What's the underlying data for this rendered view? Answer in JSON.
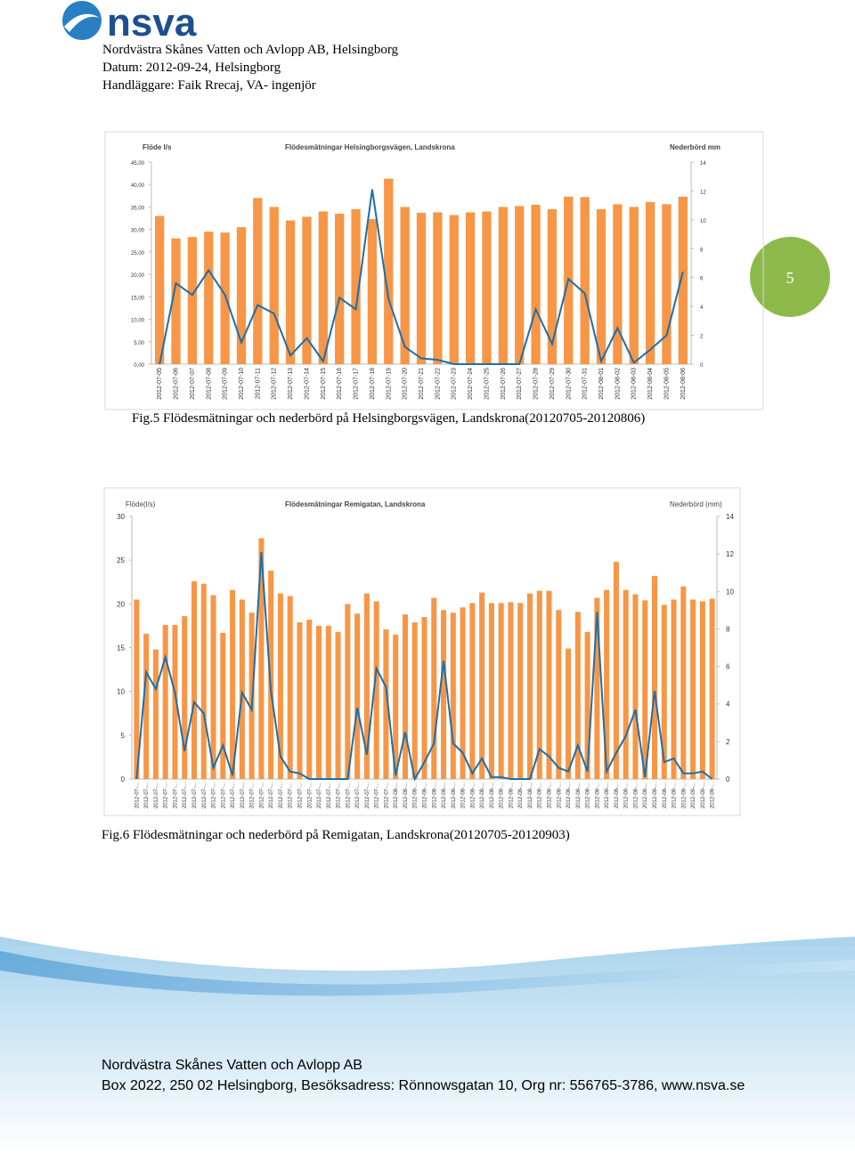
{
  "header": {
    "logo": "nsva",
    "lines": [
      "Nordvästra Skånes Vatten och Avlopp AB, Helsingborg",
      "Datum: 2012-09-24, Helsingborg",
      "Handläggare: Faik Rrecaj, VA- ingenjör"
    ]
  },
  "page_number": 5,
  "chart_data": [
    {
      "type": "bar-line",
      "title": "Flödesmätningar Helsingborgsvägen, Landskrona",
      "ylabel": "Flöde l/s",
      "y2label": "Nederbörd mm",
      "caption": "Fig.5 Flödesmätningar och nederbörd på Helsingborgsvägen, Landskrona(20120705-20120806)",
      "categories": [
        "2012-07-05",
        "2012-07-06",
        "2012-07-07",
        "2012-07-08",
        "2012-07-09",
        "2012-07-10",
        "2012-07-11",
        "2012-07-12",
        "2012-07-13",
        "2012-07-14",
        "2012-07-15",
        "2012-07-16",
        "2012-07-17",
        "2012-07-18",
        "2012-07-19",
        "2012-07-20",
        "2012-07-21",
        "2012-07-22",
        "2012-07-23",
        "2012-07-24",
        "2012-07-25",
        "2012-07-26",
        "2012-07-27",
        "2012-07-28",
        "2012-07-29",
        "2012-07-30",
        "2012-07-31",
        "2012-08-01",
        "2012-08-02",
        "2012-08-03",
        "2012-08-04",
        "2012-08-05",
        "2012-08-06"
      ],
      "series": [
        {
          "color": "#f79646",
          "values": [
            33,
            28,
            28.3,
            29.5,
            29.3,
            30.5,
            37,
            35,
            32,
            32.8,
            34,
            33.5,
            34.5,
            32.3,
            41.3,
            35,
            33.7,
            33.8,
            33.2,
            33.8,
            34,
            35,
            35.2,
            35.5,
            34.5,
            37.3,
            37.2,
            34.5,
            35.6,
            35,
            36.1,
            35.6,
            37.3
          ]
        },
        {
          "color": "#1f6ea6",
          "axis": "y2",
          "values": [
            0,
            5.6,
            4.8,
            6.5,
            4.8,
            1.5,
            4.1,
            3.5,
            0.6,
            1.8,
            0.2,
            4.6,
            3.8,
            12.1,
            4.5,
            1.2,
            0.4,
            0.3,
            0,
            0,
            0,
            0,
            0,
            3.8,
            1.4,
            5.9,
            4.9,
            0.2,
            2.5,
            0.1,
            1,
            2,
            6.4
          ]
        }
      ],
      "ylim": [
        0,
        45
      ],
      "yticks": [
        {
          "value": 0,
          "label": "0,00"
        },
        {
          "value": 5,
          "label": "5,00"
        },
        {
          "value": 10,
          "label": "10,00"
        },
        {
          "value": 15,
          "label": "15,00"
        },
        {
          "value": 20,
          "label": "20,00"
        },
        {
          "value": 25,
          "label": "25,00"
        },
        {
          "value": 30,
          "label": "30,00"
        },
        {
          "value": 35,
          "label": "35,00"
        },
        {
          "value": 40,
          "label": "40,00"
        },
        {
          "value": 45,
          "label": "45,00"
        }
      ],
      "y2lim": [
        0,
        14
      ],
      "y2ticks": [
        0,
        2,
        4,
        6,
        8,
        10,
        12,
        14
      ]
    },
    {
      "type": "bar-line",
      "title": "Flödesmätningar Remigatan, Landskrona",
      "ylabel": "Flöde(l/s)",
      "y2label": "Nederbörd (mm)",
      "caption": "Fig.6 Flödesmätningar och nederbörd på Remigatan, Landskrona(20120705-20120903)",
      "categories": [
        "2012-07-...",
        "2012-07-...",
        "2012-07-...",
        "2012-07-...",
        "2012-07-...",
        "2012-07-...",
        "2012-07-...",
        "2012-07-...",
        "2012-07-...",
        "2012-07-...",
        "2012-07-...",
        "2012-07-...",
        "2012-07-...",
        "2012-07-...",
        "2012-07-...",
        "2012-07-...",
        "2012-07-...",
        "2012-07-...",
        "2012-07-...",
        "2012-07-...",
        "2012-07-...",
        "2012-07-...",
        "2012-07-...",
        "2012-07-...",
        "2012-07-...",
        "2012-07-...",
        "2012-07-...",
        "2012-08-...",
        "2012-08-...",
        "2012-08-...",
        "2012-08-...",
        "2012-08-...",
        "2012-08-...",
        "2012-08-...",
        "2012-08-...",
        "2012-08-...",
        "2012-08-...",
        "2012-08-...",
        "2012-08-...",
        "2012-08-...",
        "2012-08-...",
        "2012-08-...",
        "2012-08-...",
        "2012-08-...",
        "2012-08-...",
        "2012-08-...",
        "2012-08-...",
        "2012-08-...",
        "2012-08-...",
        "2012-08-...",
        "2012-08-...",
        "2012-08-...",
        "2012-08-...",
        "2012-08-...",
        "2012-08-...",
        "2012-08-...",
        "2012-08-...",
        "2012-08-...",
        "2012-09-...",
        "2012-09-...",
        "2012-09-..."
      ],
      "series": [
        {
          "color": "#f79646",
          "values": [
            20.5,
            16.6,
            14.8,
            17.6,
            17.6,
            18.6,
            22.6,
            22.3,
            21,
            16.7,
            21.6,
            20.5,
            19,
            27.5,
            23.8,
            21.2,
            20.9,
            17.9,
            18.2,
            17.5,
            17.5,
            16.8,
            20,
            18.9,
            21.2,
            20.3,
            17.1,
            16.5,
            18.8,
            17.9,
            18.5,
            20.7,
            19.3,
            19,
            19.6,
            20.1,
            21.3,
            20.1,
            20.1,
            20.2,
            20.1,
            21.2,
            21.5,
            21.5,
            19.3,
            14.9,
            19.1,
            16.8,
            20.7,
            21.6,
            24.8,
            21.6,
            21.1,
            20.4,
            23.2,
            19.9,
            20.5,
            22,
            20.5,
            20.3,
            20.6
          ]
        },
        {
          "color": "#1f6ea6",
          "axis": "y2",
          "values": [
            0,
            5.7,
            4.8,
            6.5,
            4.6,
            1.5,
            4.1,
            3.5,
            0.6,
            1.8,
            0.2,
            4.6,
            3.7,
            12.1,
            4.7,
            1.2,
            0.4,
            0.3,
            0,
            0,
            0,
            0,
            0,
            3.8,
            1.3,
            5.9,
            4.9,
            0.2,
            2.5,
            0,
            0.9,
            1.9,
            6.3,
            1.9,
            1.4,
            0.3,
            1.1,
            0.1,
            0.1,
            0,
            0,
            0,
            1.6,
            1.2,
            0.6,
            0.4,
            1.8,
            0.4,
            8.9,
            0.4,
            1.4,
            2.3,
            3.7,
            0.1,
            4.7,
            0.9,
            1.1,
            0.3,
            0.3,
            0.4,
            0
          ]
        }
      ],
      "ylim": [
        0,
        30
      ],
      "yticks": [
        0,
        5,
        10,
        15,
        20,
        25,
        30
      ],
      "y2lim": [
        0,
        14
      ],
      "y2ticks": [
        0,
        2,
        4,
        6,
        8,
        10,
        12,
        14
      ]
    }
  ],
  "footer": {
    "lines": [
      "Nordvästra Skånes Vatten och Avlopp AB",
      "Box 2022, 250 02 Helsingborg, Besöksadress: Rönnowsgatan 10, Org nr: 556765-3786, www.nsva.se"
    ]
  }
}
